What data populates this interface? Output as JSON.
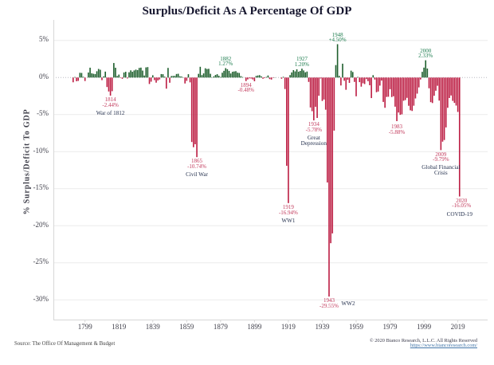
{
  "title": "Surplus/Deficit As A Percentage Of GDP",
  "y_axis_label": "% Surplus/Deficit To GDP",
  "footer": {
    "source": "Source: The Office Of Management & Budget",
    "copyright": "© 2020 Bianco Research, L.L.C. All Rights Reserved",
    "link": "https://www.biancoresearch.com/"
  },
  "colors": {
    "surplus_bar": "#1e5f2d",
    "deficit_bar": "#bc1c42",
    "surplus_label": "#1e7d4f",
    "deficit_label": "#c23a5c",
    "event_label": "#26324f",
    "title_text": "#16162e",
    "axis_text": "#3f3f4a",
    "gridline": "#ebebeb",
    "zero_line": "#b9b9c2",
    "axis_line": "#d7d7d7",
    "link_text": "#4477aa"
  },
  "chart_data": {
    "type": "bar",
    "x": [
      1792,
      1793,
      1794,
      1795,
      1796,
      1797,
      1798,
      1799,
      1800,
      1801,
      1802,
      1803,
      1804,
      1805,
      1806,
      1807,
      1808,
      1809,
      1810,
      1811,
      1812,
      1813,
      1814,
      1815,
      1816,
      1817,
      1818,
      1819,
      1820,
      1821,
      1822,
      1823,
      1824,
      1825,
      1826,
      1827,
      1828,
      1829,
      1830,
      1831,
      1832,
      1833,
      1834,
      1835,
      1836,
      1837,
      1838,
      1839,
      1840,
      1841,
      1842,
      1843,
      1844,
      1845,
      1846,
      1847,
      1848,
      1849,
      1850,
      1851,
      1852,
      1853,
      1854,
      1855,
      1856,
      1857,
      1858,
      1859,
      1860,
      1861,
      1862,
      1863,
      1864,
      1865,
      1866,
      1867,
      1868,
      1869,
      1870,
      1871,
      1872,
      1873,
      1874,
      1875,
      1876,
      1877,
      1878,
      1879,
      1880,
      1881,
      1882,
      1883,
      1884,
      1885,
      1886,
      1887,
      1888,
      1889,
      1890,
      1891,
      1892,
      1893,
      1894,
      1895,
      1896,
      1897,
      1898,
      1899,
      1900,
      1901,
      1902,
      1903,
      1904,
      1905,
      1906,
      1907,
      1908,
      1909,
      1910,
      1911,
      1912,
      1913,
      1914,
      1915,
      1916,
      1917,
      1918,
      1919,
      1920,
      1921,
      1922,
      1923,
      1924,
      1925,
      1926,
      1927,
      1928,
      1929,
      1930,
      1931,
      1932,
      1933,
      1934,
      1935,
      1936,
      1937,
      1938,
      1939,
      1940,
      1941,
      1942,
      1943,
      1944,
      1945,
      1946,
      1947,
      1948,
      1949,
      1950,
      1951,
      1952,
      1953,
      1954,
      1955,
      1956,
      1957,
      1958,
      1959,
      1960,
      1961,
      1962,
      1963,
      1964,
      1965,
      1966,
      1967,
      1968,
      1969,
      1970,
      1971,
      1972,
      1973,
      1974,
      1975,
      1976,
      1977,
      1978,
      1979,
      1980,
      1981,
      1982,
      1983,
      1984,
      1985,
      1986,
      1987,
      1988,
      1989,
      1990,
      1991,
      1992,
      1993,
      1994,
      1995,
      1996,
      1997,
      1998,
      1999,
      2000,
      2001,
      2002,
      2003,
      2004,
      2005,
      2006,
      2007,
      2008,
      2009,
      2010,
      2011,
      2012,
      2013,
      2014,
      2015,
      2016,
      2017,
      2018,
      2019,
      2020
    ],
    "values": [
      -0.64,
      0.07,
      -0.5,
      -0.45,
      0.64,
      0.62,
      0.1,
      -0.47,
      0.01,
      0.68,
      1.33,
      0.57,
      0.51,
      0.47,
      0.85,
      1.16,
      1.05,
      -0.35,
      0.16,
      0.8,
      -1.28,
      -1.88,
      -2.44,
      -1.84,
      1.96,
      1.32,
      0.21,
      0.4,
      -0.05,
      -0.17,
      0.68,
      0.78,
      -0.12,
      0.71,
      0.97,
      0.78,
      0.96,
      1.07,
      1.01,
      1.3,
      1.34,
      0.94,
      0.27,
      1.37,
      1.41,
      -0.87,
      -0.56,
      0.31,
      -0.35,
      -0.69,
      -0.39,
      -0.26,
      0.47,
      0.45,
      0.12,
      -1.5,
      1.3,
      -0.7,
      0.2,
      0.22,
      0.23,
      0.48,
      0.51,
      0.17,
      0.13,
      0.03,
      -0.8,
      -0.45,
      0.45,
      -0.65,
      -8.7,
      -9.4,
      -9.0,
      -10.74,
      0.5,
      1.45,
      0.33,
      0.56,
      1.25,
      1.15,
      1.18,
      0.51,
      0.03,
      0.16,
      0.35,
      0.45,
      0.24,
      0.08,
      0.65,
      0.91,
      1.27,
      1.13,
      0.9,
      0.55,
      0.78,
      0.82,
      0.86,
      0.66,
      0.62,
      0.19,
      0.07,
      0.02,
      -0.48,
      -0.25,
      -0.11,
      -0.13,
      -0.25,
      -0.5,
      0.22,
      0.28,
      0.32,
      0.17,
      -0.16,
      -0.08,
      0.08,
      0.28,
      -0.21,
      -0.27,
      -0.05,
      0.03,
      0.01,
      0.0,
      0.0,
      -0.16,
      0.1,
      -1.55,
      -11.91,
      -16.94,
      0.33,
      0.69,
      1.0,
      0.83,
      1.11,
      0.79,
      0.89,
      1.2,
      0.96,
      0.71,
      0.81,
      -0.59,
      -4.04,
      -4.54,
      -5.78,
      -3.95,
      -5.45,
      -2.46,
      -0.13,
      -3.16,
      -2.96,
      -4.34,
      -14.16,
      -29.55,
      -22.35,
      -21.03,
      -7.16,
      1.68,
      4.5,
      0.23,
      -1.07,
      1.87,
      -0.43,
      -1.65,
      -0.3,
      -0.72,
      0.93,
      0.75,
      -0.59,
      -2.53,
      0.08,
      -0.62,
      -1.23,
      -0.77,
      -0.88,
      -0.21,
      -0.49,
      -1.04,
      -2.77,
      0.32,
      -0.27,
      -1.98,
      -1.89,
      -1.09,
      -0.41,
      -3.29,
      -4.08,
      -2.62,
      -2.59,
      -1.57,
      -2.63,
      -2.53,
      -3.93,
      -5.88,
      -4.72,
      -5.03,
      -4.96,
      -3.13,
      -3.04,
      -2.74,
      -3.81,
      -4.42,
      -4.51,
      -3.8,
      -2.82,
      -2.17,
      -1.33,
      -0.26,
      0.77,
      1.34,
      2.33,
      1.22,
      -1.45,
      -3.32,
      -3.44,
      -2.46,
      -1.78,
      -1.11,
      -3.11,
      -9.79,
      -8.65,
      -8.43,
      -6.73,
      -4.08,
      -2.76,
      -2.42,
      -3.15,
      -3.42,
      -3.78,
      -4.64,
      -16.05
    ],
    "title": "Surplus/Deficit As A Percentage Of GDP",
    "xlabel": "",
    "ylabel": "% Surplus/Deficit To GDP",
    "ylim": [
      -32.7,
      7.8
    ],
    "grid": true,
    "y_ticks": [
      5,
      0,
      -5,
      -10,
      -15,
      -20,
      -25,
      -30
    ],
    "y_tick_labels": [
      "5%",
      "0%",
      "-5%",
      "-10%",
      "-15%",
      "-20%",
      "-25%",
      "-30%"
    ],
    "x_ticks": [
      1799,
      1819,
      1839,
      1859,
      1879,
      1899,
      1919,
      1939,
      1959,
      1979,
      1999,
      2019
    ],
    "annotations": [
      {
        "year": 1814,
        "value_label": "-2.44%",
        "events": [
          "War of 1812"
        ]
      },
      {
        "year": 1865,
        "value_label": "-10.74%",
        "events": [
          "Civil War"
        ]
      },
      {
        "year": 1882,
        "value_label": "1.27%"
      },
      {
        "year": 1894,
        "value_label": "-0.48%"
      },
      {
        "year": 1919,
        "value_label": "-16.94%",
        "events": [
          "WW1"
        ]
      },
      {
        "year": 1927,
        "value_label": "1.20%"
      },
      {
        "year": 1934,
        "value_label": "-5.78%",
        "events": [
          "Great",
          "Depression"
        ]
      },
      {
        "year": 1943,
        "value_label": "-29.55%",
        "side_label": "WW2"
      },
      {
        "year": 1948,
        "value_label": "+4.50%"
      },
      {
        "year": 1983,
        "value_label": "-5.88%",
        "dy": 2
      },
      {
        "year": 2000,
        "value_label": "2.33%"
      },
      {
        "year": 2009,
        "value_label": "-9.79%",
        "events": [
          "Global Financial",
          "Crisis"
        ]
      },
      {
        "year": 2020,
        "value_label": "-16.05%",
        "events": [
          "COVID-19"
        ],
        "dx": 2.5
      }
    ]
  }
}
